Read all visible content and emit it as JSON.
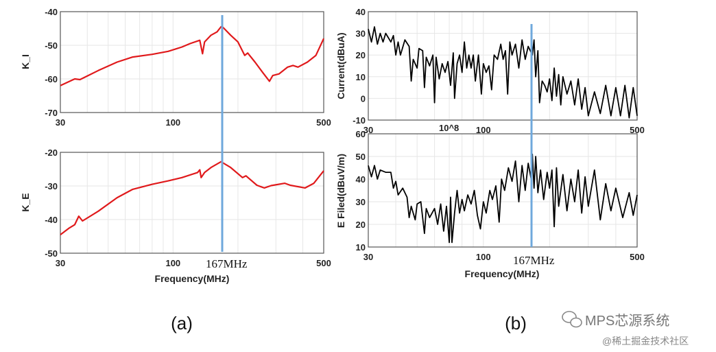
{
  "chart_data": [
    {
      "type": "line",
      "id": "KI",
      "ylabel": "K_I",
      "xlabel": "",
      "xscale": "log",
      "xlim": [
        30,
        500
      ],
      "ylim": [
        -70,
        -40
      ],
      "xticks": [
        "30",
        "100",
        "500"
      ],
      "yticks": [
        "-40",
        "-50",
        "-60",
        "-70"
      ],
      "color": "#e0191b",
      "points": [
        [
          30,
          -62
        ],
        [
          35,
          -60
        ],
        [
          37,
          -60.2
        ],
        [
          45,
          -57.5
        ],
        [
          55,
          -55
        ],
        [
          65,
          -53.5
        ],
        [
          80,
          -52.7
        ],
        [
          95,
          -51.8
        ],
        [
          110,
          -50.5
        ],
        [
          120,
          -49.5
        ],
        [
          133,
          -48.5
        ],
        [
          137,
          -52.5
        ],
        [
          140,
          -49
        ],
        [
          150,
          -47
        ],
        [
          160,
          -46
        ],
        [
          167,
          -44.5
        ],
        [
          170,
          -44.6
        ],
        [
          185,
          -47
        ],
        [
          200,
          -49
        ],
        [
          215,
          -53
        ],
        [
          222,
          -52.3
        ],
        [
          240,
          -55
        ],
        [
          260,
          -58
        ],
        [
          280,
          -60.7
        ],
        [
          290,
          -59
        ],
        [
          310,
          -58.5
        ],
        [
          340,
          -56.5
        ],
        [
          360,
          -56
        ],
        [
          380,
          -56.5
        ],
        [
          420,
          -55
        ],
        [
          460,
          -53
        ],
        [
          500,
          -48
        ]
      ]
    },
    {
      "type": "line",
      "id": "KE",
      "ylabel": "K_E",
      "xlabel": "Frequency(MHz)",
      "xscale": "log",
      "xlim": [
        30,
        500
      ],
      "ylim": [
        -50,
        -20
      ],
      "xticks": [
        "30",
        "100",
        "500"
      ],
      "yticks": [
        "-20",
        "-30",
        "-40",
        "-50"
      ],
      "color": "#e0191b",
      "points": [
        [
          30,
          -44.5
        ],
        [
          33,
          -42.5
        ],
        [
          35,
          -41.5
        ],
        [
          36.5,
          -39
        ],
        [
          38,
          -40.4
        ],
        [
          45,
          -37.5
        ],
        [
          55,
          -33.5
        ],
        [
          65,
          -31
        ],
        [
          80,
          -29.5
        ],
        [
          95,
          -28.5
        ],
        [
          110,
          -27.5
        ],
        [
          130,
          -26
        ],
        [
          133,
          -25.2
        ],
        [
          135,
          -27.5
        ],
        [
          140,
          -26
        ],
        [
          150,
          -24.5
        ],
        [
          167,
          -22.8
        ],
        [
          185,
          -24.5
        ],
        [
          210,
          -27.5
        ],
        [
          218,
          -27
        ],
        [
          245,
          -29.8
        ],
        [
          265,
          -30.6
        ],
        [
          285,
          -29.9
        ],
        [
          330,
          -29.2
        ],
        [
          350,
          -29.8
        ],
        [
          410,
          -30.6
        ],
        [
          450,
          -29.2
        ],
        [
          500,
          -25.5
        ]
      ]
    },
    {
      "type": "line",
      "id": "CUR",
      "ylabel": "Current(dBuA)",
      "xlabel": "",
      "xscale": "log",
      "xlim": [
        30,
        500
      ],
      "ylim": [
        -10,
        40
      ],
      "xticks": [
        "30",
        "100",
        "500"
      ],
      "yticks": [
        "40",
        "30",
        "20",
        "10",
        "0",
        "-10"
      ],
      "color": "#000000",
      "exponent_label": "10^8",
      "points": [
        [
          30,
          32
        ],
        [
          31,
          26
        ],
        [
          32,
          33
        ],
        [
          33,
          25
        ],
        [
          34,
          30
        ],
        [
          35,
          26
        ],
        [
          36,
          30
        ],
        [
          37,
          28
        ],
        [
          38,
          26
        ],
        [
          39,
          29
        ],
        [
          40,
          20
        ],
        [
          41,
          26
        ],
        [
          42,
          20
        ],
        [
          44,
          27
        ],
        [
          46,
          24
        ],
        [
          47,
          8
        ],
        [
          48,
          18
        ],
        [
          50,
          14
        ],
        [
          51,
          23
        ],
        [
          53,
          22
        ],
        [
          54,
          5
        ],
        [
          55,
          19
        ],
        [
          57,
          15
        ],
        [
          59,
          20
        ],
        [
          60,
          -2
        ],
        [
          61,
          19
        ],
        [
          63,
          9
        ],
        [
          65,
          16
        ],
        [
          67,
          12
        ],
        [
          69,
          17
        ],
        [
          71,
          6
        ],
        [
          73,
          21
        ],
        [
          74,
          0
        ],
        [
          76,
          16
        ],
        [
          78,
          20
        ],
        [
          80,
          12
        ],
        [
          82,
          26
        ],
        [
          84,
          14
        ],
        [
          86,
          20
        ],
        [
          88,
          14
        ],
        [
          90,
          20
        ],
        [
          92,
          8
        ],
        [
          95,
          20
        ],
        [
          98,
          2
        ],
        [
          100,
          16
        ],
        [
          103,
          12
        ],
        [
          106,
          15
        ],
        [
          109,
          4
        ],
        [
          112,
          20
        ],
        [
          116,
          18
        ],
        [
          120,
          25
        ],
        [
          123,
          18
        ],
        [
          126,
          22
        ],
        [
          129,
          2
        ],
        [
          132,
          26
        ],
        [
          135,
          20
        ],
        [
          140,
          25
        ],
        [
          145,
          14
        ],
        [
          150,
          27
        ],
        [
          155,
          18
        ],
        [
          160,
          24
        ],
        [
          167,
          20
        ],
        [
          170,
          27
        ],
        [
          173,
          10
        ],
        [
          177,
          22
        ],
        [
          180,
          -2
        ],
        [
          185,
          8
        ],
        [
          190,
          6
        ],
        [
          195,
          3
        ],
        [
          200,
          9
        ],
        [
          205,
          -1
        ],
        [
          210,
          14
        ],
        [
          215,
          1
        ],
        [
          220,
          11
        ],
        [
          225,
          -3
        ],
        [
          230,
          10
        ],
        [
          240,
          2
        ],
        [
          250,
          8
        ],
        [
          260,
          -3
        ],
        [
          270,
          9
        ],
        [
          280,
          -5
        ],
        [
          290,
          5
        ],
        [
          300,
          -8
        ],
        [
          320,
          3
        ],
        [
          340,
          -7
        ],
        [
          360,
          6
        ],
        [
          380,
          -8
        ],
        [
          400,
          5
        ],
        [
          420,
          -8
        ],
        [
          440,
          6
        ],
        [
          460,
          -9
        ],
        [
          480,
          5
        ],
        [
          500,
          -8
        ]
      ]
    },
    {
      "type": "line",
      "id": "EF",
      "ylabel": "E Filed(dBuV/m)",
      "xlabel": "Frequency(MHz)",
      "xscale": "log",
      "xlim": [
        30,
        500
      ],
      "ylim": [
        10,
        60
      ],
      "xticks": [
        "30",
        "100",
        "500"
      ],
      "yticks": [
        "60",
        "50",
        "40",
        "30",
        "20",
        "10"
      ],
      "color": "#000000",
      "points": [
        [
          30,
          46
        ],
        [
          31,
          41
        ],
        [
          32,
          46
        ],
        [
          33,
          40
        ],
        [
          34,
          44
        ],
        [
          36,
          43
        ],
        [
          38,
          43
        ],
        [
          39,
          36
        ],
        [
          40,
          39
        ],
        [
          41,
          33
        ],
        [
          43,
          36
        ],
        [
          45,
          32
        ],
        [
          46,
          23
        ],
        [
          47,
          28
        ],
        [
          49,
          22
        ],
        [
          50,
          29
        ],
        [
          52,
          30
        ],
        [
          54,
          16
        ],
        [
          55,
          27
        ],
        [
          57,
          23
        ],
        [
          60,
          27
        ],
        [
          62,
          20
        ],
        [
          64,
          29
        ],
        [
          66,
          17
        ],
        [
          68,
          28
        ],
        [
          70,
          12
        ],
        [
          71,
          32
        ],
        [
          72,
          12
        ],
        [
          74,
          25
        ],
        [
          76,
          35
        ],
        [
          78,
          25
        ],
        [
          80,
          31
        ],
        [
          82,
          26
        ],
        [
          85,
          33
        ],
        [
          88,
          29
        ],
        [
          91,
          35
        ],
        [
          94,
          24
        ],
        [
          97,
          18
        ],
        [
          100,
          30
        ],
        [
          103,
          25
        ],
        [
          107,
          35
        ],
        [
          110,
          31
        ],
        [
          114,
          37
        ],
        [
          118,
          21
        ],
        [
          121,
          40
        ],
        [
          125,
          35
        ],
        [
          130,
          45
        ],
        [
          135,
          39
        ],
        [
          140,
          48
        ],
        [
          145,
          30
        ],
        [
          150,
          46
        ],
        [
          155,
          35
        ],
        [
          160,
          47
        ],
        [
          165,
          40
        ],
        [
          167,
          51
        ],
        [
          170,
          36
        ],
        [
          173,
          50
        ],
        [
          177,
          34
        ],
        [
          182,
          44
        ],
        [
          188,
          31
        ],
        [
          195,
          43
        ],
        [
          200,
          36
        ],
        [
          205,
          44
        ],
        [
          210,
          19
        ],
        [
          215,
          45
        ],
        [
          220,
          28
        ],
        [
          230,
          42
        ],
        [
          240,
          26
        ],
        [
          250,
          40
        ],
        [
          260,
          30
        ],
        [
          270,
          44
        ],
        [
          280,
          25
        ],
        [
          290,
          41
        ],
        [
          300,
          28
        ],
        [
          320,
          44
        ],
        [
          340,
          22
        ],
        [
          360,
          38
        ],
        [
          380,
          26
        ],
        [
          400,
          36
        ],
        [
          430,
          23
        ],
        [
          460,
          34
        ],
        [
          480,
          24
        ],
        [
          500,
          33
        ]
      ]
    }
  ],
  "marker": {
    "frequency_mhz": 167,
    "label": "167MHz",
    "color": "#6fa8dc"
  },
  "panel_labels": [
    "(a)",
    "(b)"
  ],
  "watermark": {
    "brand": "MPS芯源系统",
    "source": "@稀土掘金技术社区"
  }
}
